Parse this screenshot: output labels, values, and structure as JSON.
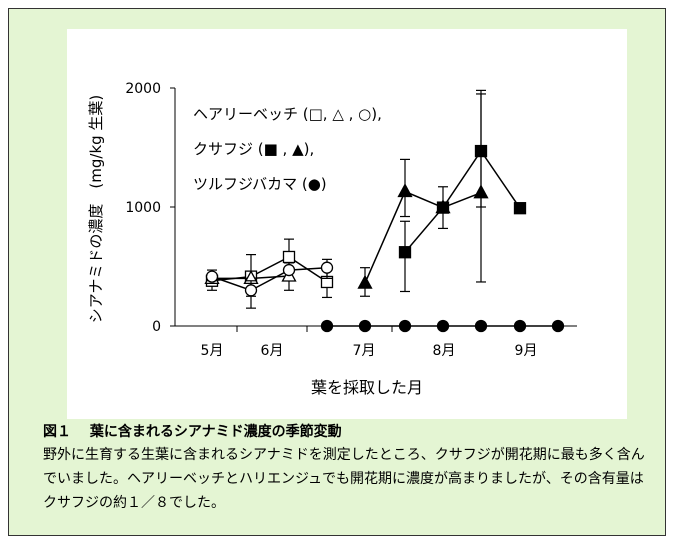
{
  "caption": {
    "title": "図１　 葉に含まれるシアナミド濃度の季節変動",
    "body": "野外に生育する生葉に含まれるシアナミドを測定したところ、クサフジが開花期に最も多く含んでいました。ヘアリーベッチとハリエンジュでも開花期に濃度が高まりましたが、その含有量はクサフジの約１／８でした。"
  },
  "chart_data": {
    "type": "line",
    "xlabel": "葉を採取した月",
    "ylabel": "シアナミドの濃度　(mg/kg 生葉)",
    "ylim": [
      0,
      2000
    ],
    "yticks": [
      0,
      1000,
      2000
    ],
    "x_tick_labels": [
      "5月",
      "6月",
      "7月",
      "8月",
      "9月"
    ],
    "legend": {
      "position": "top-left",
      "entries": [
        "ヘアリーベッチ (□, △ , ○),",
        "クサフジ (■ , ▲),",
        "ツルフジバカマ (●)"
      ]
    },
    "grid": false,
    "series": [
      {
        "name": "ヘアリーベッチ □",
        "marker": "open-square",
        "points": [
          {
            "x": "5月上旬",
            "y": 380,
            "err": [
              300,
              470
            ]
          },
          {
            "x": "5月下旬",
            "y": 415
          },
          {
            "x": "6月中旬",
            "y": 580,
            "err": [
              480,
              730
            ]
          },
          {
            "x": "6月下旬",
            "y": 370,
            "err": [
              240,
              470
            ]
          }
        ]
      },
      {
        "name": "ヘアリーベッチ △",
        "marker": "open-triangle",
        "points": [
          {
            "x": "5月上旬",
            "y": 400
          },
          {
            "x": "5月下旬",
            "y": 400,
            "err": [
              250,
              600
            ]
          },
          {
            "x": "6月中旬",
            "y": 420,
            "err": [
              300,
              530
            ]
          }
        ]
      },
      {
        "name": "ヘアリーベッチ ○",
        "marker": "open-circle",
        "points": [
          {
            "x": "5月上旬",
            "y": 415
          },
          {
            "x": "5月下旬",
            "y": 300,
            "err": [
              150,
              380
            ]
          },
          {
            "x": "6月中旬",
            "y": 470
          },
          {
            "x": "6月下旬",
            "y": 490,
            "err": [
              400,
              560
            ]
          }
        ]
      },
      {
        "name": "クサフジ ■",
        "marker": "filled-square",
        "points": [
          {
            "x": "7月下旬",
            "y": 620,
            "err": [
              290,
              880
            ]
          },
          {
            "x": "8月上旬",
            "y": 995,
            "err": [
              820,
              1170
            ]
          },
          {
            "x": "8月下旬",
            "y": 1470,
            "err": [
              1000,
              1950
            ]
          },
          {
            "x": "9月上旬",
            "y": 990
          }
        ]
      },
      {
        "name": "クサフジ ▲",
        "marker": "filled-triangle",
        "points": [
          {
            "x": "7月上旬",
            "y": 360,
            "err": [
              250,
              490
            ]
          },
          {
            "x": "7月下旬",
            "y": 1130,
            "err": [
              920,
              1400
            ]
          },
          {
            "x": "8月上旬",
            "y": 995
          },
          {
            "x": "8月下旬",
            "y": 1120,
            "err": [
              370,
              1980
            ]
          }
        ]
      },
      {
        "name": "ツルフジバカマ ●",
        "marker": "filled-circle",
        "points": [
          {
            "x": "6月下旬",
            "y": 0
          },
          {
            "x": "7月上旬",
            "y": 0
          },
          {
            "x": "7月下旬",
            "y": 0
          },
          {
            "x": "8月上旬",
            "y": 0
          },
          {
            "x": "8月下旬",
            "y": 0
          },
          {
            "x": "9月上旬",
            "y": 0
          },
          {
            "x": "9月中旬",
            "y": 0
          }
        ]
      }
    ]
  }
}
